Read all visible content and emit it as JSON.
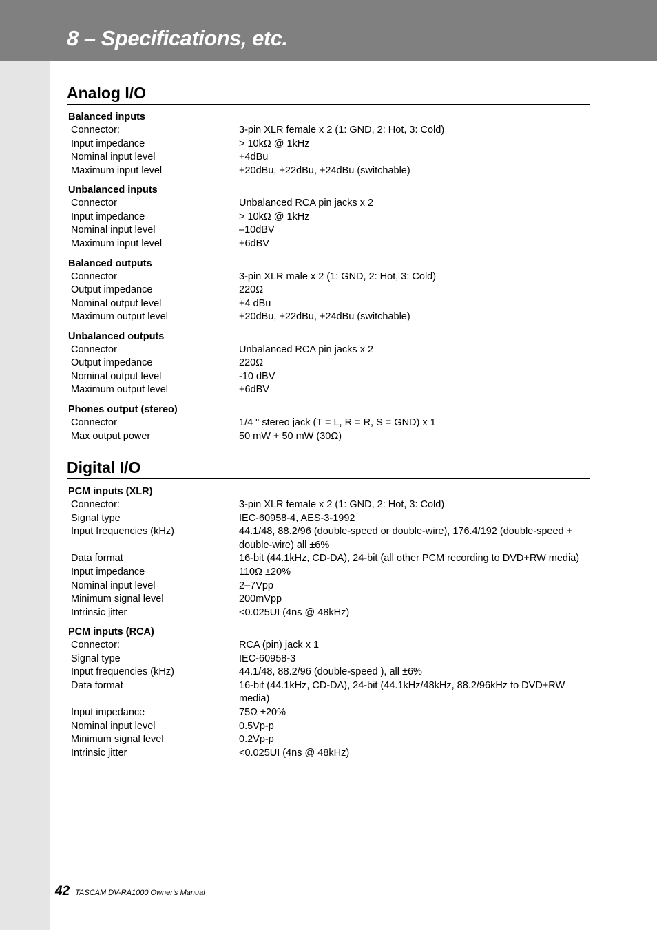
{
  "header": {
    "title": "8 – Specifications, etc."
  },
  "sections": [
    {
      "title": "Analog I/O",
      "groups": [
        {
          "title": "Balanced inputs",
          "rows": [
            {
              "label": "Connector:",
              "value": "3-pin XLR female x 2 (1: GND, 2: Hot, 3: Cold)"
            },
            {
              "label": "Input impedance",
              "value": "> 10kΩ @ 1kHz"
            },
            {
              "label": "Nominal input level",
              "value": "+4dBu"
            },
            {
              "label": "Maximum input level",
              "value": "+20dBu, +22dBu, +24dBu (switchable)"
            }
          ]
        },
        {
          "title": "Unbalanced inputs",
          "rows": [
            {
              "label": "Connector",
              "value": "Unbalanced RCA pin jacks x 2"
            },
            {
              "label": "Input impedance",
              "value": "> 10kΩ @ 1kHz"
            },
            {
              "label": "Nominal input level",
              "value": "–10dBV"
            },
            {
              "label": "Maximum input level",
              "value": "+6dBV"
            }
          ]
        },
        {
          "title": "Balanced outputs",
          "rows": [
            {
              "label": "Connector",
              "value": "3-pin XLR male x 2 (1: GND, 2: Hot, 3: Cold)"
            },
            {
              "label": "Output impedance",
              "value": "220Ω"
            },
            {
              "label": "Nominal output level",
              "value": "+4 dBu"
            },
            {
              "label": "Maximum output level",
              "value": "+20dBu, +22dBu, +24dBu (switchable)"
            }
          ]
        },
        {
          "title": "Unbalanced outputs",
          "rows": [
            {
              "label": "Connector",
              "value": "Unbalanced RCA pin jacks x 2"
            },
            {
              "label": "Output impedance",
              "value": "220Ω"
            },
            {
              "label": "Nominal output level",
              "value": "-10 dBV"
            },
            {
              "label": "Maximum output level",
              "value": "+6dBV"
            }
          ]
        },
        {
          "title": "Phones output (stereo)",
          "rows": [
            {
              "label": "Connector",
              "value": "1/4 \" stereo jack (T = L, R = R, S = GND) x 1"
            },
            {
              "label": "Max output power",
              "value": "50 mW + 50 mW (30Ω)"
            }
          ]
        }
      ]
    },
    {
      "title": "Digital I/O",
      "groups": [
        {
          "title": "PCM inputs (XLR)",
          "rows": [
            {
              "label": "Connector:",
              "value": "3-pin XLR female x 2 (1: GND, 2: Hot, 3: Cold)"
            },
            {
              "label": "Signal type",
              "value": "IEC-60958-4, AES-3-1992"
            },
            {
              "label": "Input frequencies (kHz)",
              "value": "44.1/48, 88.2/96 (double-speed or double-wire), 176.4/192 (double-speed + double-wire) all ±6%"
            },
            {
              "label": "Data format",
              "value": "16-bit (44.1kHz, CD-DA), 24-bit (all other PCM recording to DVD+RW media)"
            },
            {
              "label": "Input impedance",
              "value": "110Ω ±20%"
            },
            {
              "label": "Nominal input level",
              "value": "2–7Vpp"
            },
            {
              "label": "Minimum signal level",
              "value": "200mVpp"
            },
            {
              "label": "Intrinsic jitter",
              "value": "<0.025UI (4ns @ 48kHz)"
            }
          ]
        },
        {
          "title": "PCM inputs (RCA)",
          "rows": [
            {
              "label": "Connector:",
              "value": "RCA (pin) jack x 1"
            },
            {
              "label": "Signal type",
              "value": "IEC-60958-3"
            },
            {
              "label": "Input frequencies (kHz)",
              "value": "44.1/48, 88.2/96 (double-speed ), all ±6%"
            },
            {
              "label": "Data format",
              "value": "16-bit (44.1kHz, CD-DA), 24-bit (44.1kHz/48kHz, 88.2/96kHz to DVD+RW media)"
            },
            {
              "label": "Input impedance",
              "value": "75Ω ±20%"
            },
            {
              "label": "Nominal input level",
              "value": "0.5Vp-p"
            },
            {
              "label": "Minimum signal level",
              "value": "0.2Vp-p"
            },
            {
              "label": "Intrinsic jitter",
              "value": "<0.025UI (4ns @ 48kHz)"
            }
          ]
        }
      ]
    }
  ],
  "footer": {
    "page": "42",
    "text": "TASCAM DV-RA1000 Owner's Manual"
  }
}
